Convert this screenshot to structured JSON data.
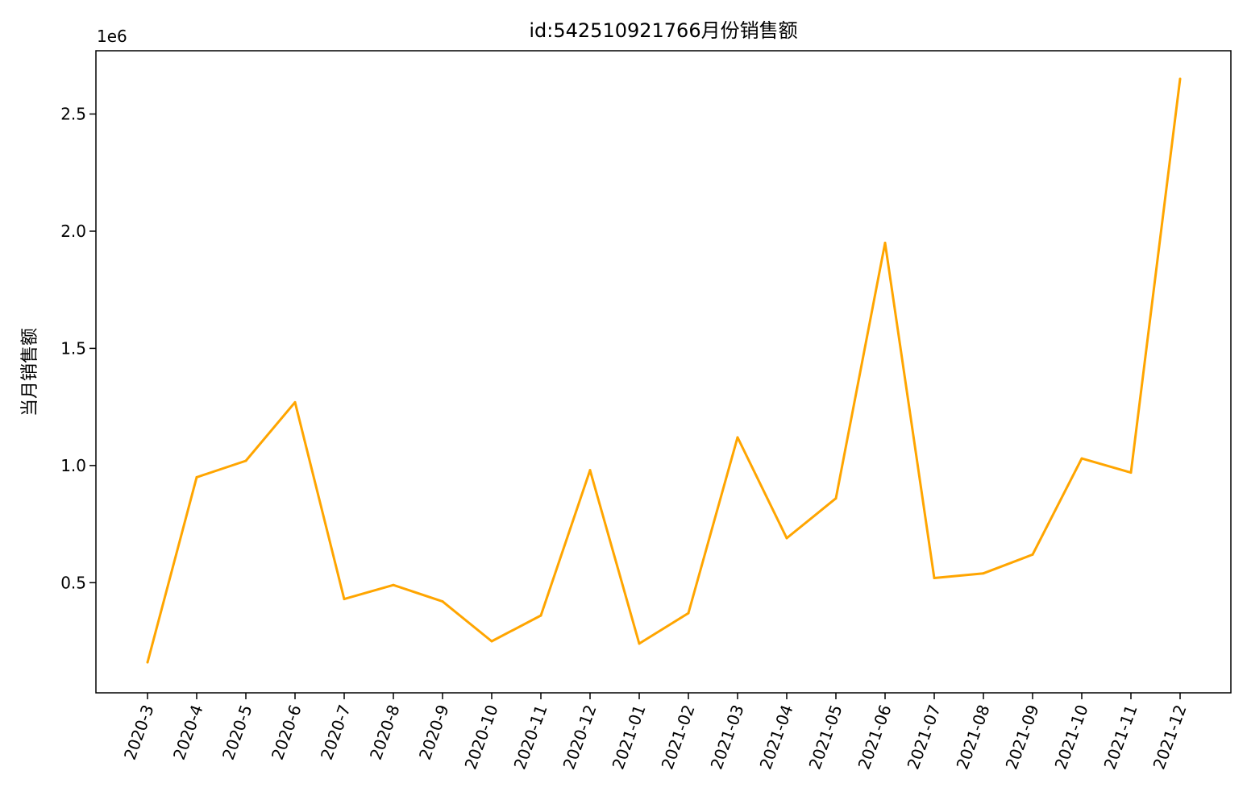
{
  "chart_data": {
    "type": "line",
    "title": "id:542510921766月份销售额",
    "xlabel": "",
    "ylabel": "当月销售额",
    "y_offset_label": "1e6",
    "y_scale": 1000000,
    "ylim": [
      0.03,
      2.77
    ],
    "yticks": [
      0.5,
      1.0,
      1.5,
      2.0,
      2.5
    ],
    "ytick_labels": [
      "0.5",
      "1.0",
      "1.5",
      "2.0",
      "2.5"
    ],
    "grid": false,
    "legend": "none",
    "color": "#ffa500",
    "categories": [
      "2020-3",
      "2020-4",
      "2020-5",
      "2020-6",
      "2020-7",
      "2020-8",
      "2020-9",
      "2020-10",
      "2020-11",
      "2020-12",
      "2021-01",
      "2021-02",
      "2021-03",
      "2021-04",
      "2021-05",
      "2021-06",
      "2021-07",
      "2021-08",
      "2021-09",
      "2021-10",
      "2021-11",
      "2021-12"
    ],
    "values": [
      0.16,
      0.95,
      1.02,
      1.27,
      0.43,
      0.49,
      0.42,
      0.25,
      0.36,
      0.98,
      0.24,
      0.37,
      1.12,
      0.69,
      0.86,
      1.95,
      0.52,
      0.54,
      0.62,
      1.03,
      0.97,
      2.65
    ]
  }
}
